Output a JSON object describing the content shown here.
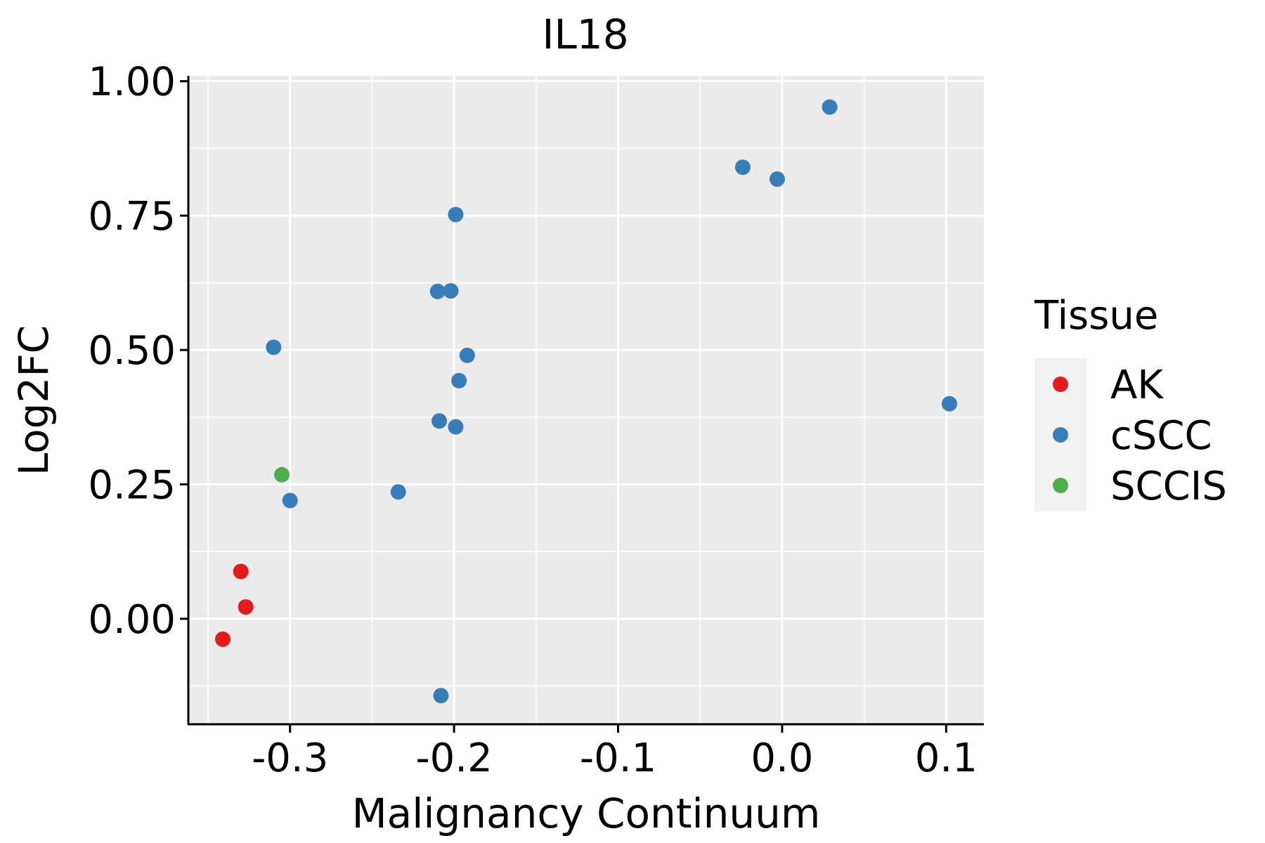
{
  "chart_data": {
    "type": "scatter",
    "title": "IL18",
    "xlabel": "Malignancy Continuum",
    "ylabel": "Log2FC",
    "xlim": [
      -0.362,
      0.123
    ],
    "ylim": [
      -0.195,
      1.01
    ],
    "x_ticks": [
      -0.3,
      -0.2,
      -0.1,
      0.0,
      0.1
    ],
    "x_tick_labels": [
      "-0.3",
      "-0.2",
      "-0.1",
      "0.0",
      "0.1"
    ],
    "y_ticks": [
      0.0,
      0.25,
      0.5,
      0.75,
      1.0
    ],
    "y_tick_labels": [
      "0.00",
      "0.25",
      "0.50",
      "0.75",
      "1.00"
    ],
    "grid": true,
    "legend": {
      "title": "Tissue",
      "placement": "right"
    },
    "series": [
      {
        "name": "AK",
        "color": "#E41A1C",
        "points": [
          {
            "x": -0.341,
            "y": -0.038
          },
          {
            "x": -0.33,
            "y": 0.088
          },
          {
            "x": -0.327,
            "y": 0.022
          }
        ]
      },
      {
        "name": "cSCC",
        "color": "#377EB8",
        "points": [
          {
            "x": -0.31,
            "y": 0.505
          },
          {
            "x": -0.3,
            "y": 0.22
          },
          {
            "x": -0.234,
            "y": 0.236
          },
          {
            "x": -0.21,
            "y": 0.609
          },
          {
            "x": -0.202,
            "y": 0.61
          },
          {
            "x": -0.209,
            "y": 0.368
          },
          {
            "x": -0.208,
            "y": -0.143
          },
          {
            "x": -0.199,
            "y": 0.752
          },
          {
            "x": -0.199,
            "y": 0.357
          },
          {
            "x": -0.197,
            "y": 0.443
          },
          {
            "x": -0.192,
            "y": 0.49
          },
          {
            "x": -0.024,
            "y": 0.84
          },
          {
            "x": -0.003,
            "y": 0.818
          },
          {
            "x": 0.029,
            "y": 0.952
          },
          {
            "x": 0.102,
            "y": 0.4
          }
        ]
      },
      {
        "name": "SCCIS",
        "color": "#4DAF4A",
        "points": [
          {
            "x": -0.305,
            "y": 0.268
          }
        ]
      }
    ]
  }
}
